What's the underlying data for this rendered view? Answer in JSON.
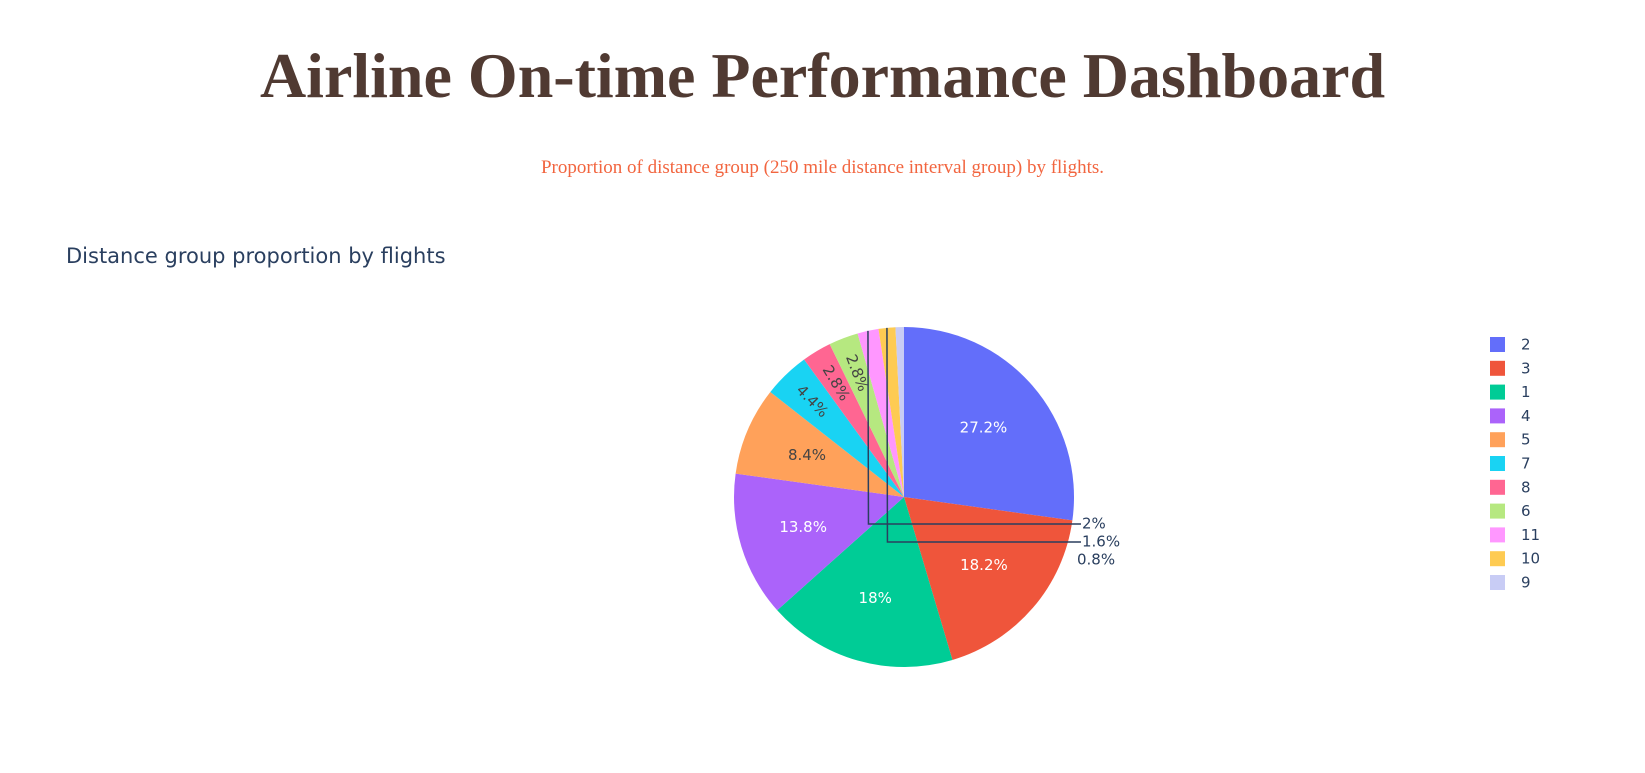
{
  "header": {
    "title": "Airline On-time Performance Dashboard",
    "subtitle": "Proportion of distance group (250 mile distance interval group) by flights."
  },
  "chart_data": {
    "type": "pie",
    "title": "Distance group proportion by flights",
    "legend_position": "right",
    "slices": [
      {
        "label": "2",
        "percent": 27.2,
        "text": "27.2%",
        "color": "#636EFA"
      },
      {
        "label": "3",
        "percent": 18.2,
        "text": "18.2%",
        "color": "#EF553B"
      },
      {
        "label": "1",
        "percent": 18.0,
        "text": "18%",
        "color": "#00CC96"
      },
      {
        "label": "4",
        "percent": 13.8,
        "text": "13.8%",
        "color": "#AB63FA"
      },
      {
        "label": "5",
        "percent": 8.4,
        "text": "8.4%",
        "color": "#FFA15A"
      },
      {
        "label": "7",
        "percent": 4.4,
        "text": "4.4%",
        "color": "#19D3F3"
      },
      {
        "label": "8",
        "percent": 2.8,
        "text": "2.8%",
        "color": "#FF6692"
      },
      {
        "label": "6",
        "percent": 2.8,
        "text": "2.8%",
        "color": "#B6E880"
      },
      {
        "label": "11",
        "percent": 2.0,
        "text": "2%",
        "color": "#FF97FF"
      },
      {
        "label": "10",
        "percent": 1.6,
        "text": "1.6%",
        "color": "#FECB52"
      },
      {
        "label": "9",
        "percent": 0.8,
        "text": "0.8%",
        "color": "#C8CCF5"
      }
    ]
  }
}
